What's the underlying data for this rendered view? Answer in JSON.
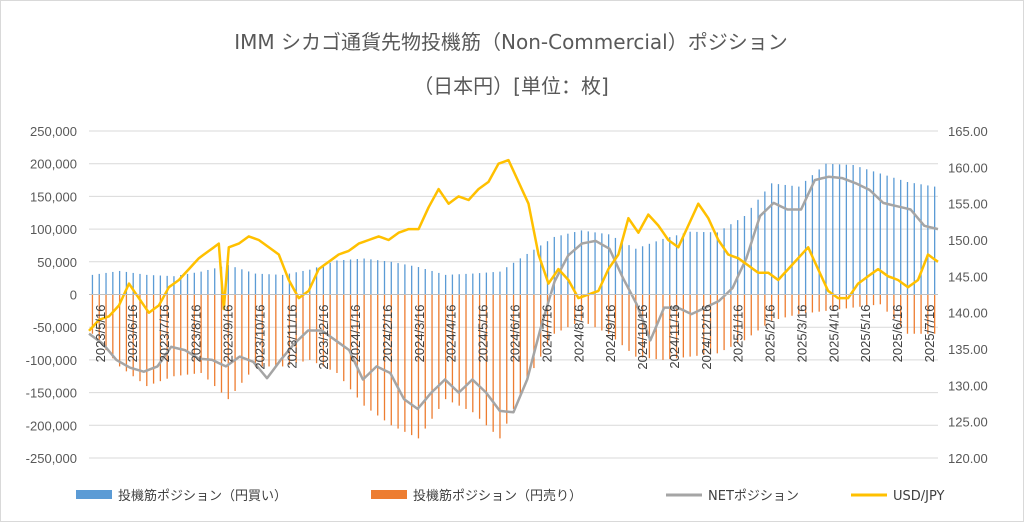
{
  "chart_data": {
    "type": "bar-line-combo",
    "title_line1": "IMM シカゴ通貨先物投機筋（Non-Commercial）ポジション",
    "title_line2": "（日本円）[単位：枚]",
    "y_left": {
      "min": -250000,
      "max": 250000,
      "step": 50000,
      "tick_labels": [
        "250,000",
        "200,000",
        "150,000",
        "100,000",
        "50,000",
        "0",
        "-50,000",
        "-100,000",
        "-150,000",
        "-200,000",
        "-250,000"
      ]
    },
    "y_right": {
      "min": 120,
      "max": 165,
      "step": 5,
      "tick_labels": [
        "165.00",
        "160.00",
        "155.00",
        "150.00",
        "145.00",
        "140.00",
        "135.00",
        "130.00",
        "125.00",
        "120.00"
      ]
    },
    "x_tick_labels": [
      "2023/5/16",
      "2023/6/16",
      "2023/7/16",
      "2023/8/16",
      "2023/9/16",
      "2023/10/16",
      "2023/11/16",
      "2023/12/16",
      "2024/1/16",
      "2024/2/16",
      "2024/3/16",
      "2024/4/16",
      "2024/5/16",
      "2024/6/16",
      "2024/7/16",
      "2024/8/16",
      "2024/9/16",
      "2024/10/16",
      "2024/11/16",
      "2024/12/16",
      "2025/1/16",
      "2025/2/16",
      "2025/3/16",
      "2025/4/16",
      "2025/5/16",
      "2025/6/16",
      "2025/7/16"
    ],
    "legend": [
      {
        "label": "投機筋ポジション（円買い）",
        "color": "#5b9bd5",
        "kind": "bar"
      },
      {
        "label": "投機筋ポジション（円売り）",
        "color": "#ed7d31",
        "kind": "bar"
      },
      {
        "label": "NETポジション",
        "color": "#a5a5a5",
        "kind": "line"
      },
      {
        "label": "USD/JPY",
        "color": "#ffc000",
        "kind": "line"
      }
    ],
    "long_anchors": [
      [
        0,
        30000
      ],
      [
        4,
        36000
      ],
      [
        8,
        30000
      ],
      [
        12,
        28000
      ],
      [
        16,
        35000
      ],
      [
        20,
        45000
      ],
      [
        24,
        32000
      ],
      [
        28,
        30000
      ],
      [
        32,
        38000
      ],
      [
        36,
        52000
      ],
      [
        40,
        55000
      ],
      [
        44,
        50000
      ],
      [
        48,
        42000
      ],
      [
        52,
        30000
      ],
      [
        56,
        32000
      ],
      [
        60,
        35000
      ],
      [
        64,
        62000
      ],
      [
        68,
        88000
      ],
      [
        72,
        98000
      ],
      [
        76,
        92000
      ],
      [
        80,
        70000
      ],
      [
        84,
        85000
      ],
      [
        88,
        96000
      ],
      [
        92,
        95000
      ],
      [
        96,
        120000
      ],
      [
        100,
        170000
      ],
      [
        104,
        165000
      ],
      [
        108,
        200000
      ],
      [
        112,
        198000
      ],
      [
        116,
        185000
      ],
      [
        120,
        172000
      ],
      [
        124,
        165000
      ]
    ],
    "short_anchors": [
      [
        0,
        -60000
      ],
      [
        4,
        -110000
      ],
      [
        8,
        -140000
      ],
      [
        12,
        -125000
      ],
      [
        16,
        -120000
      ],
      [
        20,
        -160000
      ],
      [
        24,
        -110000
      ],
      [
        28,
        -110000
      ],
      [
        32,
        -100000
      ],
      [
        36,
        -120000
      ],
      [
        40,
        -170000
      ],
      [
        44,
        -200000
      ],
      [
        48,
        -220000
      ],
      [
        52,
        -160000
      ],
      [
        56,
        -180000
      ],
      [
        60,
        -220000
      ],
      [
        64,
        -130000
      ],
      [
        68,
        -60000
      ],
      [
        72,
        -40000
      ],
      [
        76,
        -60000
      ],
      [
        80,
        -95000
      ],
      [
        84,
        -100000
      ],
      [
        88,
        -95000
      ],
      [
        92,
        -90000
      ],
      [
        96,
        -70000
      ],
      [
        100,
        -40000
      ],
      [
        104,
        -30000
      ],
      [
        108,
        -25000
      ],
      [
        112,
        -20000
      ],
      [
        116,
        -15000
      ],
      [
        120,
        -60000
      ],
      [
        124,
        -60000
      ]
    ],
    "net_anchors": [
      [
        0,
        -60000
      ],
      [
        2,
        -75000
      ],
      [
        4,
        -100000
      ],
      [
        6,
        -112000
      ],
      [
        8,
        -118000
      ],
      [
        10,
        -110000
      ],
      [
        12,
        -80000
      ],
      [
        14,
        -85000
      ],
      [
        16,
        -98000
      ],
      [
        18,
        -100000
      ],
      [
        20,
        -110000
      ],
      [
        22,
        -95000
      ],
      [
        24,
        -103000
      ],
      [
        26,
        -128000
      ],
      [
        28,
        -100000
      ],
      [
        30,
        -75000
      ],
      [
        32,
        -55000
      ],
      [
        34,
        -55000
      ],
      [
        36,
        -70000
      ],
      [
        38,
        -85000
      ],
      [
        40,
        -130000
      ],
      [
        42,
        -110000
      ],
      [
        44,
        -120000
      ],
      [
        46,
        -160000
      ],
      [
        48,
        -175000
      ],
      [
        50,
        -150000
      ],
      [
        52,
        -130000
      ],
      [
        54,
        -150000
      ],
      [
        56,
        -130000
      ],
      [
        58,
        -150000
      ],
      [
        60,
        -178000
      ],
      [
        62,
        -180000
      ],
      [
        64,
        -130000
      ],
      [
        66,
        -50000
      ],
      [
        68,
        20000
      ],
      [
        70,
        60000
      ],
      [
        72,
        78000
      ],
      [
        74,
        82000
      ],
      [
        76,
        70000
      ],
      [
        78,
        25000
      ],
      [
        80,
        -15000
      ],
      [
        82,
        -70000
      ],
      [
        84,
        -20000
      ],
      [
        86,
        -20000
      ],
      [
        88,
        -30000
      ],
      [
        90,
        -20000
      ],
      [
        92,
        -10000
      ],
      [
        94,
        10000
      ],
      [
        96,
        55000
      ],
      [
        98,
        120000
      ],
      [
        100,
        140000
      ],
      [
        102,
        130000
      ],
      [
        104,
        130000
      ],
      [
        106,
        175000
      ],
      [
        108,
        180000
      ],
      [
        110,
        178000
      ],
      [
        112,
        170000
      ],
      [
        114,
        160000
      ],
      [
        116,
        140000
      ],
      [
        118,
        135000
      ],
      [
        120,
        130000
      ],
      [
        122,
        105000
      ],
      [
        124,
        100000
      ]
    ],
    "usdjpy_anchors": [
      [
        0,
        137.5
      ],
      [
        2,
        139
      ],
      [
        4,
        139.5
      ],
      [
        6,
        141
      ],
      [
        8,
        144
      ],
      [
        10,
        142
      ],
      [
        12,
        140
      ],
      [
        14,
        141
      ],
      [
        16,
        143.5
      ],
      [
        18,
        144.5
      ],
      [
        20,
        146
      ],
      [
        22,
        147.5
      ],
      [
        24,
        148.5
      ],
      [
        26,
        149.5
      ],
      [
        27,
        140.5
      ],
      [
        28,
        149
      ],
      [
        30,
        149.5
      ],
      [
        32,
        150.5
      ],
      [
        34,
        150
      ],
      [
        36,
        149
      ],
      [
        38,
        148
      ],
      [
        40,
        144.5
      ],
      [
        42,
        142
      ],
      [
        44,
        143
      ],
      [
        46,
        146
      ],
      [
        48,
        147
      ],
      [
        50,
        148
      ],
      [
        52,
        148.5
      ],
      [
        54,
        149.5
      ],
      [
        56,
        150
      ],
      [
        58,
        150.5
      ],
      [
        60,
        150
      ],
      [
        62,
        151
      ],
      [
        64,
        151.5
      ],
      [
        66,
        151.5
      ],
      [
        68,
        154.5
      ],
      [
        70,
        157
      ],
      [
        72,
        155
      ],
      [
        74,
        156
      ],
      [
        76,
        155.5
      ],
      [
        78,
        157
      ],
      [
        80,
        158
      ],
      [
        82,
        160.5
      ],
      [
        84,
        161
      ],
      [
        86,
        158
      ],
      [
        88,
        155
      ],
      [
        90,
        148
      ],
      [
        92,
        144
      ],
      [
        94,
        146
      ],
      [
        96,
        144.5
      ],
      [
        98,
        142
      ],
      [
        100,
        142.5
      ],
      [
        102,
        143
      ],
      [
        104,
        146
      ],
      [
        106,
        148
      ],
      [
        108,
        153
      ],
      [
        110,
        151
      ],
      [
        112,
        153.5
      ],
      [
        114,
        152
      ],
      [
        116,
        150
      ],
      [
        118,
        149
      ],
      [
        120,
        152
      ],
      [
        122,
        155
      ],
      [
        124,
        153
      ],
      [
        126,
        150
      ],
      [
        128,
        148
      ],
      [
        130,
        147.5
      ],
      [
        132,
        146.5
      ],
      [
        134,
        145.5
      ],
      [
        136,
        145.5
      ],
      [
        138,
        144.5
      ],
      [
        140,
        146
      ],
      [
        142,
        147.5
      ],
      [
        144,
        149
      ],
      [
        146,
        146
      ],
      [
        148,
        143
      ],
      [
        150,
        142
      ],
      [
        152,
        142
      ],
      [
        154,
        144
      ],
      [
        156,
        145
      ],
      [
        158,
        146
      ],
      [
        160,
        145
      ],
      [
        162,
        144.5
      ],
      [
        164,
        143.5
      ],
      [
        166,
        144.5
      ],
      [
        168,
        148
      ],
      [
        170,
        147
      ]
    ]
  }
}
